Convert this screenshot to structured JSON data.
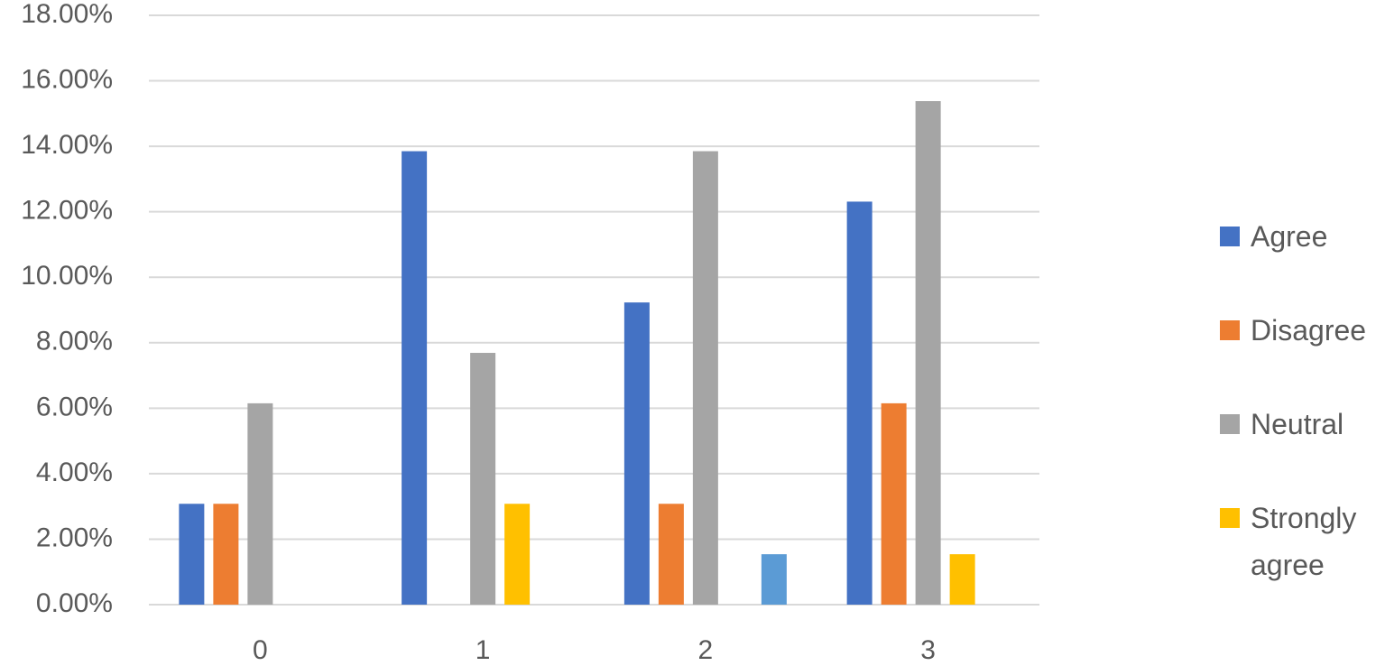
{
  "chart_data": {
    "type": "bar",
    "categories": [
      "0",
      "1",
      "2",
      "3"
    ],
    "series": [
      {
        "name": "Agree",
        "color": "#4472c4",
        "values": [
          3.08,
          13.85,
          9.23,
          12.31
        ]
      },
      {
        "name": "Disagree",
        "color": "#ed7d31",
        "values": [
          3.08,
          0,
          3.08,
          6.15
        ]
      },
      {
        "name": "Neutral",
        "color": "#a5a5a5",
        "values": [
          6.15,
          7.69,
          13.85,
          15.38
        ]
      },
      {
        "name": "Strongly agree",
        "color": "#ffc000",
        "values": [
          0,
          3.08,
          0,
          1.54
        ]
      },
      {
        "color": "#5b9bd5",
        "values": [
          0,
          0,
          1.54,
          0
        ]
      }
    ],
    "ylim": [
      0,
      18
    ],
    "yticks": [
      {
        "value": 0,
        "label": "0.00%"
      },
      {
        "value": 2,
        "label": "2.00%"
      },
      {
        "value": 4,
        "label": "4.00%"
      },
      {
        "value": 6,
        "label": "6.00%"
      },
      {
        "value": 8,
        "label": "8.00%"
      },
      {
        "value": 10,
        "label": "10.00%"
      },
      {
        "value": 12,
        "label": "12.00%"
      },
      {
        "value": 14,
        "label": "14.00%"
      },
      {
        "value": 16,
        "label": "16.00%"
      },
      {
        "value": 18,
        "label": "18.00%"
      }
    ],
    "grid": true,
    "legend": "right"
  }
}
